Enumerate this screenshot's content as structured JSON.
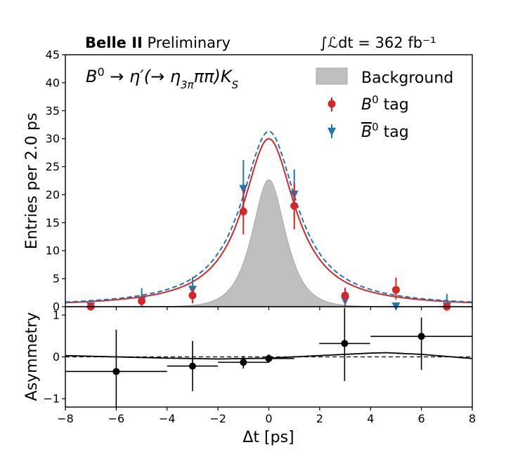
{
  "header": {
    "experiment_bold": "Belle II",
    "experiment_rest": " Preliminary",
    "luminosity_text": "∫ℒdt = 362 fb⁻¹"
  },
  "process_label": "B⁰ → η′(→ η₃πππ)K_S",
  "colors": {
    "b0": "#d62728",
    "b0bar": "#1f77b4",
    "background": "#bfbfbf",
    "asym": "#000000"
  },
  "chart_data": [
    {
      "type": "line",
      "panel": "top",
      "ylabel": "Entries per 2.0 ps",
      "xlim": [
        -8,
        8
      ],
      "ylim": [
        0,
        45
      ],
      "yticks": [
        "0",
        "5",
        "10",
        "15",
        "20",
        "25",
        "30",
        "35",
        "40",
        "45"
      ],
      "legend": {
        "position": "top-right",
        "entries": [
          "Background",
          "B⁰ tag",
          "B̅⁰ tag"
        ]
      },
      "b0_tag": {
        "name": "B⁰ tag",
        "x": [
          -7,
          -5,
          -3,
          -1,
          1,
          3,
          5,
          7
        ],
        "y": [
          0,
          1,
          2,
          17,
          18,
          2,
          3,
          0
        ],
        "yerr_low": [
          0,
          1.0,
          1.4,
          4.1,
          4.2,
          1.4,
          1.7,
          0
        ],
        "yerr_high": [
          0,
          1.0,
          1.4,
          4.1,
          4.2,
          1.4,
          2.2,
          0
        ]
      },
      "b0bar_tag": {
        "name": "B̅⁰ tag",
        "x": [
          -7,
          -5,
          -3,
          -1,
          1,
          3,
          5,
          7
        ],
        "y": [
          0,
          1,
          3,
          21,
          20,
          1,
          0,
          0
        ],
        "yerr_low": [
          0,
          1.0,
          1.7,
          4.6,
          4.5,
          1.0,
          0,
          0
        ],
        "yerr_high": [
          0,
          2.3,
          2.3,
          5.2,
          4.5,
          2.3,
          0,
          2.3
        ]
      },
      "curves": {
        "b0_total": {
          "peak": 30.0,
          "gamma": 1.25,
          "style": "solid"
        },
        "b0bar_total": {
          "peak": 31.3,
          "gamma": 1.32,
          "style": "dashed"
        },
        "background": {
          "peak": 22.7,
          "sigma": 0.58,
          "style": "filled"
        }
      }
    },
    {
      "type": "scatter",
      "panel": "bottom",
      "ylabel": "Asymmetry",
      "xlabel": "Δt [ps]",
      "xlim": [
        -8,
        8
      ],
      "ylim": [
        -1.2,
        1.2
      ],
      "xticks": [
        "−8",
        "−6",
        "−4",
        "−2",
        "0",
        "2",
        "4",
        "6",
        "8"
      ],
      "yticks": [
        "−1",
        "0",
        "1"
      ],
      "points": {
        "x": [
          -6,
          -3,
          -1,
          0,
          2.98,
          6
        ],
        "y": [
          -0.35,
          -0.22,
          -0.13,
          -0.04,
          0.32,
          0.49
        ],
        "xerr": [
          2.0,
          1.0,
          1.0,
          1.0,
          1.0,
          2.0
        ],
        "yerr_low": [
          1.0,
          0.6,
          0.15,
          0.1,
          0.9,
          0.8
        ],
        "yerr_high": [
          1.0,
          0.6,
          0.15,
          0.1,
          0.85,
          0.45
        ]
      },
      "fit_curve": {
        "x": [
          -8,
          -6,
          -4,
          -2,
          0,
          2,
          4,
          4.6,
          6,
          8
        ],
        "y": [
          0.03,
          0.0,
          -0.03,
          -0.05,
          -0.03,
          0.03,
          0.09,
          0.1,
          0.06,
          -0.04
        ],
        "style": "solid"
      },
      "reference_line": {
        "y": 0,
        "style": "dashed"
      }
    }
  ]
}
